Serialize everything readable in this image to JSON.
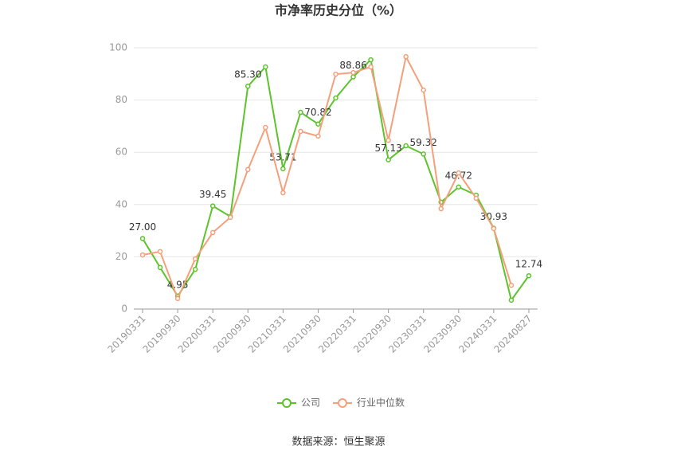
{
  "chart_data": {
    "type": "line",
    "title": "市净率历史分位（%）",
    "source": "数据来源：恒生聚源",
    "categories": [
      "20190331",
      null,
      "20190930",
      null,
      "20200331",
      null,
      "20200930",
      null,
      "20210331",
      null,
      "20210930",
      null,
      "20220331",
      null,
      "20220930",
      null,
      "20230331",
      null,
      "20230930",
      null,
      "20240331",
      null,
      "20240827"
    ],
    "series": [
      {
        "name": "公司",
        "color": "#5cc42b",
        "values": [
          27,
          15.9,
          4.95,
          15.2,
          39.45,
          35.4,
          85.3,
          92.7,
          53.71,
          75.3,
          70.82,
          80.8,
          88.86,
          95.4,
          57.13,
          62.5,
          59.32,
          40.9,
          46.72,
          43.6,
          30.93,
          3.4,
          12.74
        ],
        "value_labels": [
          "27.00",
          null,
          "4.95",
          null,
          "39.45",
          null,
          "85.30",
          null,
          "53.71",
          null,
          "70.82",
          null,
          "88.86",
          null,
          "57.13",
          null,
          "59.32",
          null,
          "46.72",
          null,
          "30.93",
          null,
          "12.74"
        ]
      },
      {
        "name": "行业中位数",
        "color": "#f5a07a",
        "values": [
          20.7,
          22.0,
          4.0,
          19.2,
          29.3,
          35.1,
          53.4,
          69.5,
          44.5,
          68.0,
          66.2,
          89.9,
          90.5,
          92.7,
          64.6,
          96.6,
          83.8,
          38.4,
          52.1,
          42.4,
          30.8,
          9.1,
          null
        ]
      }
    ],
    "ylim": [
      0,
      100
    ],
    "yticks": [
      0,
      20,
      40,
      60,
      80,
      100
    ],
    "grid": true
  }
}
